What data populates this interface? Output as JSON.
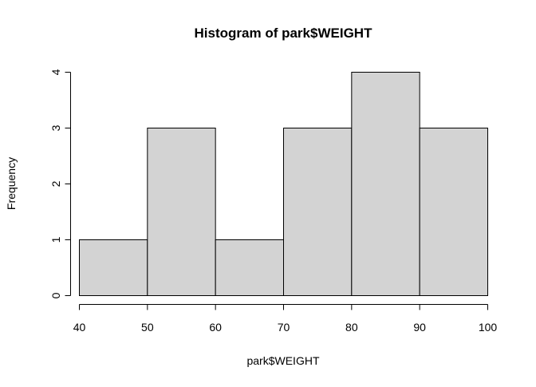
{
  "chart_data": {
    "type": "bar",
    "title": "Histogram of park$WEIGHT",
    "xlabel": "park$WEIGHT",
    "ylabel": "Frequency",
    "bins": [
      [
        40,
        50
      ],
      [
        50,
        60
      ],
      [
        60,
        70
      ],
      [
        70,
        80
      ],
      [
        80,
        90
      ],
      [
        90,
        100
      ]
    ],
    "values": [
      1,
      3,
      1,
      3,
      4,
      3
    ],
    "xlim": [
      40,
      100
    ],
    "ylim": [
      0,
      4
    ],
    "x_ticks": [
      "40",
      "50",
      "60",
      "70",
      "80",
      "90",
      "100"
    ],
    "y_ticks": [
      "0",
      "1",
      "2",
      "3",
      "4"
    ],
    "grid": false,
    "colors": {
      "bar_fill": "#d3d3d3",
      "bar_stroke": "#000000"
    }
  }
}
